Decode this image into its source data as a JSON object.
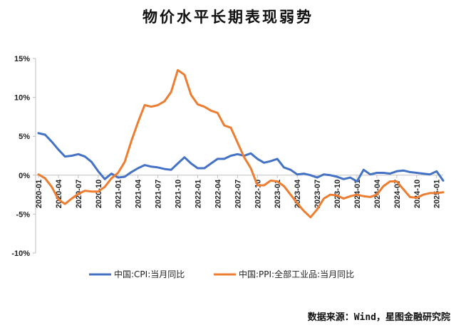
{
  "title": "物价水平长期表现弱势",
  "source": "数据来源：Wind，星图金融研究院",
  "colors": {
    "cpi": "#4472C4",
    "ppi": "#ED7D31",
    "axis": "#bfbfbf",
    "text": "#222222"
  },
  "chart_data": {
    "type": "line",
    "title": "物价水平长期表现弱势",
    "xlabel": "",
    "ylabel": "",
    "ylim": [
      -10,
      15
    ],
    "yticks": [
      -10,
      -5,
      0,
      5,
      10,
      15
    ],
    "ytick_labels": [
      "-10%",
      "-5%",
      "0%",
      "5%",
      "10%",
      "15%"
    ],
    "x_tick_labels": [
      "2020-01",
      "2020-04",
      "2020-07",
      "2020-10",
      "2021-01",
      "2021-04",
      "2021-07",
      "2021-10",
      "2022-01",
      "2022-04",
      "2022-07",
      "2022-10",
      "2023-01",
      "2023-04",
      "2023-07",
      "2023-10",
      "2024-01",
      "2024-04",
      "2024-07",
      "2024-10",
      "2025-01"
    ],
    "grid": false,
    "legend_position": "bottom",
    "x": [
      "2020-01",
      "2020-02",
      "2020-03",
      "2020-04",
      "2020-05",
      "2020-06",
      "2020-07",
      "2020-08",
      "2020-09",
      "2020-10",
      "2020-11",
      "2020-12",
      "2021-01",
      "2021-02",
      "2021-03",
      "2021-04",
      "2021-05",
      "2021-06",
      "2021-07",
      "2021-08",
      "2021-09",
      "2021-10",
      "2021-11",
      "2021-12",
      "2022-01",
      "2022-02",
      "2022-03",
      "2022-04",
      "2022-05",
      "2022-06",
      "2022-07",
      "2022-08",
      "2022-09",
      "2022-10",
      "2022-11",
      "2022-12",
      "2023-01",
      "2023-02",
      "2023-03",
      "2023-04",
      "2023-05",
      "2023-06",
      "2023-07",
      "2023-08",
      "2023-09",
      "2023-10",
      "2023-11",
      "2023-12",
      "2024-01",
      "2024-02",
      "2024-03",
      "2024-04",
      "2024-05",
      "2024-06",
      "2024-07",
      "2024-08",
      "2024-09",
      "2024-10",
      "2024-11",
      "2024-12",
      "2025-01",
      "2025-02"
    ],
    "series": [
      {
        "name": "中国:CPI:当月同比",
        "color": "#4472C4",
        "values": [
          5.4,
          5.2,
          4.3,
          3.3,
          2.4,
          2.5,
          2.7,
          2.4,
          1.7,
          0.5,
          -0.5,
          0.2,
          -0.3,
          -0.2,
          0.4,
          0.9,
          1.3,
          1.1,
          1.0,
          0.8,
          0.7,
          1.5,
          2.3,
          1.5,
          0.9,
          0.9,
          1.5,
          2.1,
          2.1,
          2.5,
          2.7,
          2.5,
          2.8,
          2.1,
          1.6,
          1.8,
          2.1,
          1.0,
          0.7,
          0.1,
          0.2,
          0.0,
          -0.3,
          0.1,
          0.0,
          -0.2,
          -0.5,
          -0.3,
          -0.8,
          0.7,
          0.1,
          0.3,
          0.3,
          0.2,
          0.5,
          0.6,
          0.4,
          0.3,
          0.2,
          0.1,
          0.5,
          -0.7
        ]
      },
      {
        "name": "中国:PPI:全部工业品:当月同比",
        "color": "#ED7D31",
        "values": [
          0.1,
          -0.4,
          -1.5,
          -3.1,
          -3.7,
          -3.0,
          -2.4,
          -2.0,
          -2.1,
          -2.1,
          -1.5,
          -0.4,
          0.3,
          1.7,
          4.4,
          6.8,
          9.0,
          8.8,
          9.0,
          9.5,
          10.7,
          13.5,
          12.9,
          10.3,
          9.1,
          8.8,
          8.3,
          8.0,
          6.4,
          6.1,
          4.2,
          2.3,
          0.9,
          -1.3,
          -1.3,
          -0.7,
          -0.8,
          -1.4,
          -2.5,
          -3.6,
          -4.6,
          -5.4,
          -4.4,
          -3.0,
          -2.5,
          -2.6,
          -3.0,
          -2.7,
          -2.5,
          -2.7,
          -2.8,
          -2.5,
          -1.4,
          -0.8,
          -0.8,
          -1.8,
          -2.8,
          -2.9,
          -2.5,
          -2.3,
          -2.3,
          -2.2
        ]
      }
    ]
  }
}
